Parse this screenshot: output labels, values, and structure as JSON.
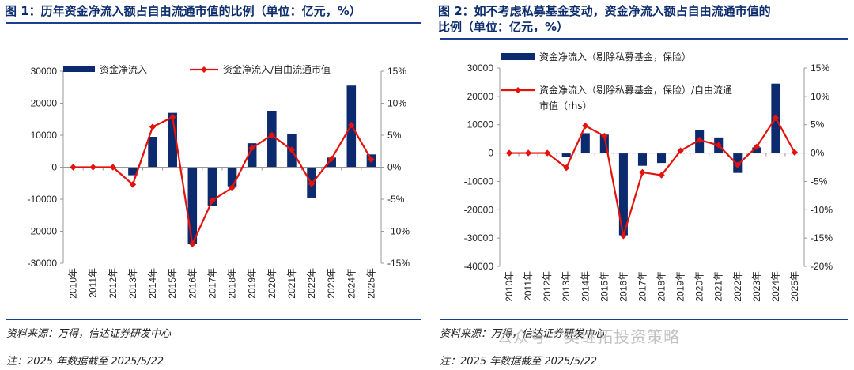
{
  "colors": {
    "bar": "#0c2a6e",
    "line": "#e3120b",
    "title": "#0d2d6e"
  },
  "left": {
    "title": "图 1：历年资金净流入额占自由流通市值的比例（单位：亿元，%）",
    "source": "资料来源：万得，信达证券研发中心",
    "note": "注：2025 年数据截至 2025/5/22",
    "legend_bar": "资金净流入",
    "legend_line": "资金净流入/自由流通市值"
  },
  "right": {
    "title_line1": "图 2：如不考虑私募基金变动，资金净流入额占自由流通市值的",
    "title_line2": "比例（单位：亿元，%）",
    "source": "资料来源：万得，信达证券研发中心",
    "note": "注：2025 年数据截至 2025/5/22",
    "legend_bar": "资金净流入（剔除私募基金，保险）",
    "legend_line_1": "资金净流入（剔除私募基金，保险）/自由流通",
    "legend_line_2": "市值（rhs）",
    "watermark": "公众号 · 樊继拓投资策略"
  },
  "chart_data": [
    {
      "type": "bar",
      "title": "",
      "categories": [
        "2010年",
        "2011年",
        "2012年",
        "2013年",
        "2014年",
        "2015年",
        "2016年",
        "2017年",
        "2018年",
        "2019年",
        "2020年",
        "2021年",
        "2022年",
        "2023年",
        "2024年",
        "2025年"
      ],
      "series": [
        {
          "name": "资金净流入",
          "type": "bar",
          "axis": "left",
          "values": [
            0,
            0,
            0,
            -2500,
            9500,
            17000,
            -24000,
            -12000,
            -6000,
            7500,
            17500,
            10500,
            -9500,
            3000,
            25500,
            4000
          ]
        },
        {
          "name": "资金净流入/自由流通市值",
          "type": "line",
          "axis": "right",
          "values": [
            0,
            0,
            0,
            -2.7,
            6.3,
            7.8,
            -12,
            -5.2,
            -3.2,
            3.0,
            5.0,
            2.7,
            -2.6,
            1.3,
            6.6,
            1.2
          ]
        }
      ],
      "ylim_left": [
        -30000,
        30000
      ],
      "yticks_left": [
        30000,
        20000,
        10000,
        0,
        -10000,
        -20000,
        -30000
      ],
      "ytick_labels_left": [
        "30000",
        "20000",
        "10000",
        "0",
        "-10000",
        "-20000",
        "-30000"
      ],
      "ylim_right": [
        -15,
        15
      ],
      "yticks_right": [
        15,
        10,
        5,
        0,
        -5,
        -10,
        -15
      ],
      "ytick_labels_right": [
        "15%",
        "10%",
        "5%",
        "0%",
        "-5%",
        "-10%",
        "-15%"
      ],
      "legend": "top"
    },
    {
      "type": "bar",
      "title": "",
      "categories": [
        "2010年",
        "2011年",
        "2012年",
        "2013年",
        "2014年",
        "2015年",
        "2016年",
        "2017年",
        "2018年",
        "2019年",
        "2020年",
        "2021年",
        "2022年",
        "2023年",
        "2024年",
        "2025年"
      ],
      "series": [
        {
          "name": "资金净流入（剔除私募基金，保险）",
          "type": "bar",
          "axis": "left",
          "values": [
            0,
            0,
            0,
            -1500,
            7000,
            6500,
            -29000,
            -4500,
            -3500,
            0,
            8000,
            5500,
            -7000,
            2000,
            24500,
            0
          ]
        },
        {
          "name": "资金净流入（剔除私募基金，保险）/自由流通市值（rhs）",
          "type": "line",
          "axis": "right",
          "values": [
            0,
            0,
            0,
            -2.6,
            4.8,
            3.0,
            -14.6,
            -3.4,
            -3.9,
            0.4,
            2.3,
            1.4,
            -2.1,
            1.1,
            6.2,
            0.1
          ]
        }
      ],
      "ylim_left": [
        -40000,
        30000
      ],
      "yticks_left": [
        30000,
        20000,
        10000,
        0,
        -10000,
        -20000,
        -30000,
        -40000
      ],
      "ytick_labels_left": [
        "30000",
        "20000",
        "10000",
        "0",
        "-10000",
        "-20000",
        "-30000",
        "-40000"
      ],
      "ylim_right": [
        -20,
        15
      ],
      "yticks_right": [
        15,
        10,
        5,
        0,
        -5,
        -10,
        -15,
        -20
      ],
      "ytick_labels_right": [
        "15%",
        "10%",
        "5%",
        "0%",
        "-5%",
        "-10%",
        "-15%",
        "-20%"
      ],
      "legend": "top"
    }
  ]
}
